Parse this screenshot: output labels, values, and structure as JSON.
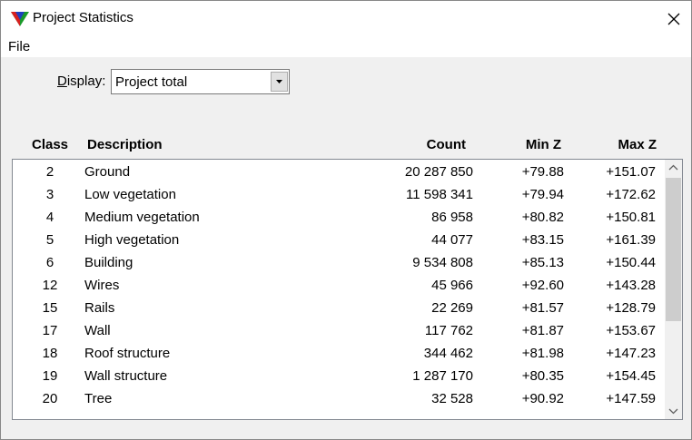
{
  "window": {
    "title": "Project Statistics"
  },
  "menu": [
    "File"
  ],
  "display": {
    "label": "Display:",
    "value": "Project total"
  },
  "table": {
    "columns": [
      "Class",
      "Description",
      "Count",
      "Min Z",
      "Max Z"
    ],
    "rows": [
      [
        "2",
        "Ground",
        "20 287 850",
        "+79.88",
        "+151.07"
      ],
      [
        "3",
        "Low vegetation",
        "11 598 341",
        "+79.94",
        "+172.62"
      ],
      [
        "4",
        "Medium vegetation",
        "86 958",
        "+80.82",
        "+150.81"
      ],
      [
        "5",
        "High vegetation",
        "44 077",
        "+83.15",
        "+161.39"
      ],
      [
        "6",
        "Building",
        "9 534 808",
        "+85.13",
        "+150.44"
      ],
      [
        "12",
        "Wires",
        "45 966",
        "+92.60",
        "+143.28"
      ],
      [
        "15",
        "Rails",
        "22 269",
        "+81.57",
        "+128.79"
      ],
      [
        "17",
        "Wall",
        "117 762",
        "+81.87",
        "+153.67"
      ],
      [
        "18",
        "Roof structure",
        "344 462",
        "+81.98",
        "+147.23"
      ],
      [
        "19",
        "Wall structure",
        "1 287 170",
        "+80.35",
        "+154.45"
      ],
      [
        "20",
        "Tree",
        "32 528",
        "+90.92",
        "+147.59"
      ]
    ]
  }
}
